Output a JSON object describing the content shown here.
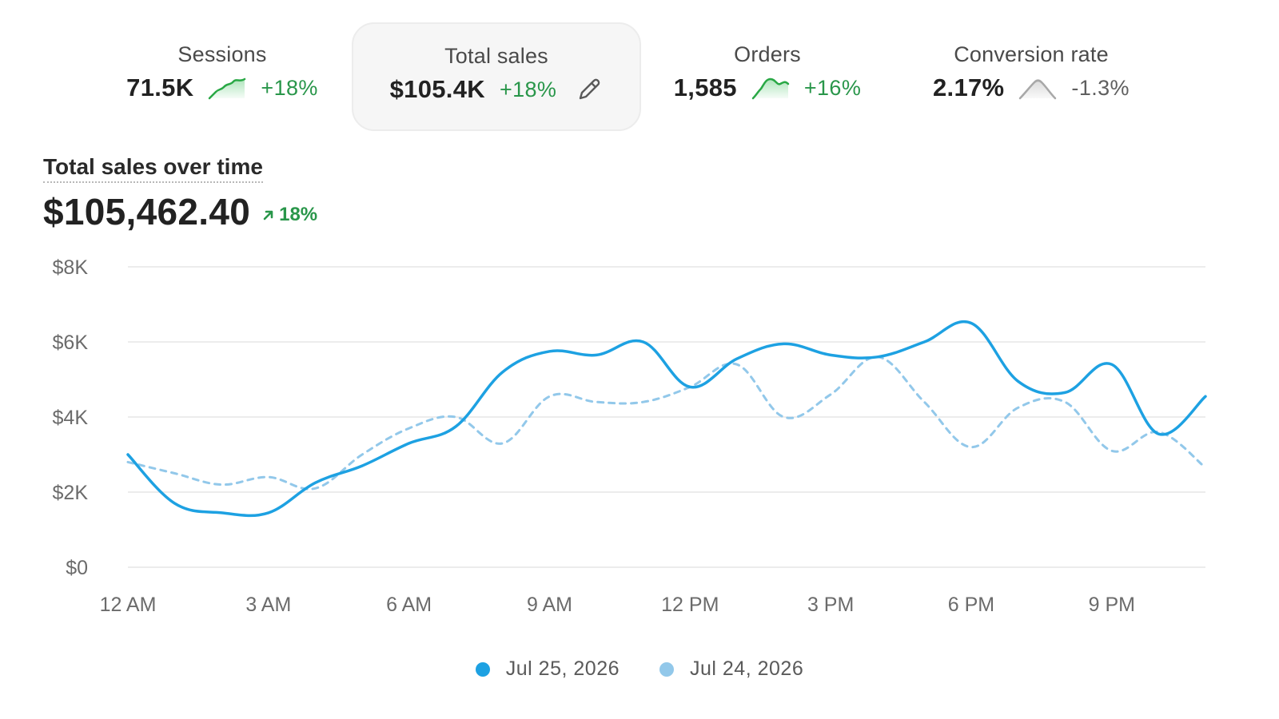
{
  "metrics": [
    {
      "label": "Sessions",
      "value": "71.5K",
      "change": "+18%",
      "trend": "up",
      "spark_icon": "sparkline-up-icon"
    },
    {
      "label": "Total sales",
      "value": "$105.4K",
      "change": "+18%",
      "trend": "up",
      "selected": true,
      "spark_icon": "",
      "edit_icon": "pencil-icon"
    },
    {
      "label": "Orders",
      "value": "1,585",
      "change": "+16%",
      "trend": "up",
      "spark_icon": "sparkline-up-icon"
    },
    {
      "label": "Conversion rate",
      "value": "2.17%",
      "change": "-1.3%",
      "trend": "neutral",
      "spark_icon": "sparkline-flat-icon"
    }
  ],
  "chart_header": {
    "title": "Total sales over time",
    "total": "$105,462.40",
    "change": "18%",
    "change_icon": "arrow-up-right-icon"
  },
  "chart_data": {
    "type": "line",
    "x": [
      "12 AM",
      "1 AM",
      "2 AM",
      "3 AM",
      "4 AM",
      "5 AM",
      "6 AM",
      "7 AM",
      "8 AM",
      "9 AM",
      "10 AM",
      "11 AM",
      "12 PM",
      "1 PM",
      "2 PM",
      "3 PM",
      "4 PM",
      "5 PM",
      "6 PM",
      "7 PM",
      "8 PM",
      "9 PM",
      "10 PM",
      "11 PM"
    ],
    "xticks": [
      "12 AM",
      "3 AM",
      "6 AM",
      "9 AM",
      "12 PM",
      "3 PM",
      "6 PM",
      "9 PM"
    ],
    "yticks": [
      "$0",
      "$2K",
      "$4K",
      "$6K",
      "$8K"
    ],
    "ylim": [
      0,
      8000
    ],
    "grid": true,
    "legend": "bottom-center",
    "series": [
      {
        "name": "Jul 25, 2026",
        "style": "solid",
        "color": "#1da1e2",
        "values": [
          3000,
          1700,
          1450,
          1450,
          2250,
          2700,
          3300,
          3750,
          5200,
          5750,
          5650,
          6000,
          4800,
          5550,
          5950,
          5650,
          5600,
          6000,
          6500,
          4950,
          4650,
          5400,
          3550,
          4550
        ]
      },
      {
        "name": "Jul 24, 2026",
        "style": "dashed",
        "color": "#92c8ea",
        "values": [
          2800,
          2500,
          2200,
          2400,
          2100,
          3000,
          3700,
          4000,
          3300,
          4550,
          4400,
          4400,
          4800,
          5400,
          4000,
          4600,
          5600,
          4400,
          3200,
          4250,
          4400,
          3100,
          3600,
          2650
        ]
      }
    ]
  },
  "colors": {
    "accent": "#1da1e2",
    "comparison": "#92c8ea",
    "positive": "#29964a",
    "neutral": "#5f5f5f"
  }
}
